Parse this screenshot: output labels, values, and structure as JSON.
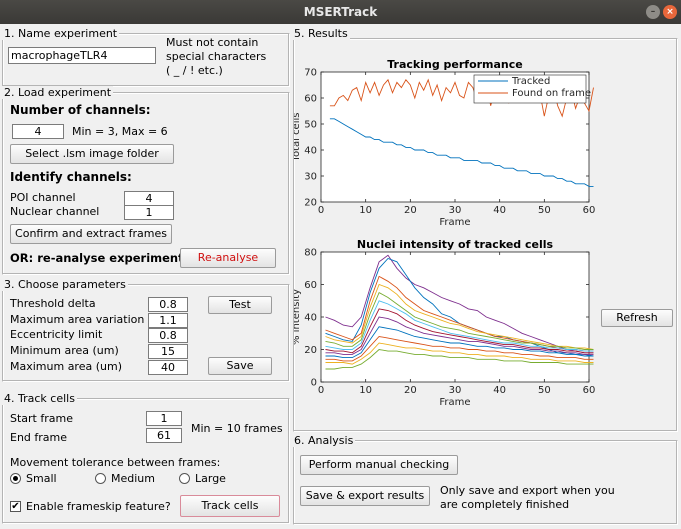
{
  "window": {
    "title": "MSERTrack",
    "min_glyph": "–",
    "close_glyph": "×"
  },
  "name_panel": {
    "title": "1. Name experiment",
    "value": "macrophageTLR4",
    "note_lines": [
      "Must not contain",
      "special characters",
      "( _ / ! etc.)"
    ]
  },
  "load_panel": {
    "title": "2. Load experiment",
    "channels_heading": "Number of channels:",
    "channels_value": "4",
    "channels_range": "Min = 3, Max = 6",
    "select_button": "Select .lsm image folder",
    "identify_heading": "Identify channels:",
    "poi_label": "POI channel",
    "poi_value": "4",
    "nuclear_label": "Nuclear channel",
    "nuclear_value": "1",
    "confirm_button": "Confirm and extract frames",
    "reanalyse_label": "OR: re-analyse experiment",
    "reanalyse_button": "Re-analyse"
  },
  "params_panel": {
    "title": "3. Choose parameters",
    "rows": [
      {
        "label": "Threshold delta",
        "value": "0.8"
      },
      {
        "label": "Maximum area variation",
        "value": "1.1"
      },
      {
        "label": "Eccentricity limit",
        "value": "0.8"
      },
      {
        "label": "Minimum area (um)",
        "value": "15"
      },
      {
        "label": "Maximum area (um)",
        "value": "40"
      }
    ],
    "test_button": "Test",
    "save_button": "Save"
  },
  "track_panel": {
    "title": "4. Track cells",
    "start_label": "Start frame",
    "start_value": "1",
    "end_label": "End frame",
    "end_value": "61",
    "min_note": "Min = 10 frames",
    "tolerance_label": "Movement tolerance between frames:",
    "options": [
      "Small",
      "Medium",
      "Large"
    ],
    "selected_option": "Small",
    "frameskip_label": "Enable frameskip feature?",
    "frameskip_checked": true,
    "check_glyph": "✔",
    "track_button": "Track cells"
  },
  "results_panel": {
    "title": "5. Results",
    "refresh_button": "Refresh"
  },
  "analysis_panel": {
    "title": "6. Analysis",
    "manual_button": "Perform manual checking",
    "export_button": "Save & export results",
    "export_note_lines": [
      "Only save and export when you",
      "are completely finished"
    ]
  },
  "chart_data": [
    {
      "type": "line",
      "title": "Tracking performance",
      "xlabel": "Frame",
      "ylabel": "Total cells",
      "xlim": [
        0,
        60
      ],
      "ylim": [
        20,
        70
      ],
      "xticks": [
        0,
        10,
        20,
        30,
        40,
        50,
        60
      ],
      "yticks": [
        20,
        30,
        40,
        50,
        60,
        70
      ],
      "legend_position": "top-right",
      "series": [
        {
          "name": "Tracked",
          "color": "#0072bd",
          "x": [
            2,
            3,
            4,
            5,
            6,
            7,
            8,
            9,
            10,
            11,
            12,
            13,
            14,
            15,
            16,
            17,
            18,
            19,
            20,
            21,
            22,
            23,
            24,
            25,
            26,
            27,
            28,
            29,
            30,
            31,
            32,
            33,
            34,
            35,
            36,
            37,
            38,
            39,
            40,
            41,
            42,
            43,
            44,
            45,
            46,
            47,
            48,
            49,
            50,
            51,
            52,
            53,
            54,
            55,
            56,
            57,
            58,
            59,
            60,
            61
          ],
          "values": [
            52,
            52,
            51,
            50,
            49,
            48,
            47,
            46,
            45,
            45,
            44,
            44,
            43,
            43,
            43,
            42,
            42,
            41,
            41,
            40,
            40,
            40,
            39,
            39,
            38,
            38,
            38,
            37,
            37,
            37,
            36,
            36,
            36,
            36,
            35,
            35,
            35,
            34,
            34,
            33,
            33,
            33,
            32,
            32,
            32,
            31,
            31,
            31,
            30,
            30,
            30,
            29,
            29,
            28,
            28,
            27,
            27,
            27,
            26,
            26
          ]
        },
        {
          "name": "Found on frame",
          "color": "#d95319",
          "x": [
            2,
            3,
            4,
            5,
            6,
            7,
            8,
            9,
            10,
            11,
            12,
            13,
            14,
            15,
            16,
            17,
            18,
            19,
            20,
            21,
            22,
            23,
            24,
            25,
            26,
            27,
            28,
            29,
            30,
            31,
            32,
            33,
            34,
            35,
            36,
            37,
            38,
            39,
            40,
            41,
            42,
            43,
            44,
            45,
            46,
            47,
            48,
            49,
            50,
            51,
            52,
            53,
            54,
            55,
            56,
            57,
            58,
            59,
            60,
            61
          ],
          "values": [
            57,
            57,
            60,
            61,
            59,
            63,
            64,
            59,
            66,
            62,
            66,
            61,
            65,
            67,
            62,
            66,
            64,
            67,
            65,
            60,
            66,
            63,
            67,
            61,
            65,
            59,
            64,
            62,
            66,
            61,
            60,
            66,
            64,
            59,
            63,
            66,
            57,
            64,
            60,
            66,
            58,
            64,
            62,
            67,
            60,
            65,
            59,
            62,
            53,
            61,
            64,
            57,
            53,
            60,
            63,
            56,
            61,
            58,
            55,
            64
          ]
        }
      ]
    },
    {
      "type": "line",
      "title": "Nuclei intensity of tracked cells",
      "xlabel": "Frame",
      "ylabel": "% intensity",
      "xlim": [
        0,
        60
      ],
      "ylim": [
        0,
        80
      ],
      "xticks": [
        0,
        10,
        20,
        30,
        40,
        50,
        60
      ],
      "yticks": [
        0,
        20,
        40,
        60,
        80
      ],
      "x": [
        1,
        3,
        5,
        7,
        9,
        11,
        13,
        15,
        17,
        19,
        21,
        23,
        25,
        27,
        29,
        31,
        33,
        35,
        37,
        39,
        41,
        43,
        45,
        47,
        49,
        51,
        53,
        55,
        57,
        59,
        61
      ],
      "series": [
        {
          "color": "#7e2f8e",
          "values": [
            40,
            38,
            35,
            34,
            40,
            58,
            74,
            78,
            70,
            64,
            60,
            58,
            55,
            52,
            50,
            48,
            45,
            44,
            40,
            38,
            36,
            33,
            30,
            28,
            26,
            24,
            22,
            20,
            19,
            18,
            18
          ]
        },
        {
          "color": "#0072bd",
          "values": [
            30,
            28,
            26,
            25,
            35,
            55,
            70,
            76,
            74,
            66,
            58,
            52,
            48,
            42,
            40,
            36,
            34,
            32,
            30,
            28,
            28,
            26,
            25,
            24,
            22,
            20,
            18,
            18,
            17,
            17,
            16
          ]
        },
        {
          "color": "#d95319",
          "values": [
            32,
            30,
            28,
            26,
            30,
            50,
            65,
            62,
            58,
            52,
            48,
            44,
            42,
            40,
            38,
            36,
            34,
            32,
            30,
            28,
            27,
            26,
            25,
            24,
            23,
            22,
            21,
            20,
            20,
            19,
            19
          ]
        },
        {
          "color": "#edb120",
          "values": [
            28,
            26,
            25,
            24,
            28,
            46,
            60,
            58,
            54,
            48,
            44,
            42,
            40,
            38,
            36,
            35,
            33,
            31,
            30,
            29,
            28,
            27,
            26,
            25,
            24,
            23,
            22,
            22,
            21,
            21,
            20
          ]
        },
        {
          "color": "#77ac30",
          "values": [
            25,
            24,
            22,
            22,
            26,
            42,
            55,
            52,
            48,
            44,
            40,
            38,
            36,
            34,
            33,
            32,
            30,
            29,
            28,
            27,
            26,
            25,
            24,
            24,
            23,
            22,
            22,
            21,
            21,
            20,
            20
          ]
        },
        {
          "color": "#4dbeee",
          "values": [
            22,
            21,
            20,
            20,
            24,
            38,
            50,
            48,
            45,
            42,
            38,
            36,
            34,
            32,
            30,
            29,
            28,
            27,
            26,
            25,
            24,
            24,
            23,
            22,
            22,
            21,
            21,
            20,
            20,
            19,
            19
          ]
        },
        {
          "color": "#a2142f",
          "values": [
            20,
            19,
            19,
            18,
            22,
            34,
            45,
            44,
            42,
            38,
            35,
            33,
            31,
            30,
            29,
            28,
            27,
            26,
            25,
            24,
            23,
            23,
            22,
            21,
            21,
            20,
            20,
            19,
            19,
            18,
            18
          ]
        },
        {
          "color": "#7e2f8e",
          "values": [
            18,
            18,
            17,
            17,
            20,
            30,
            40,
            39,
            37,
            34,
            32,
            30,
            29,
            28,
            27,
            26,
            25,
            25,
            24,
            23,
            22,
            22,
            21,
            20,
            20,
            19,
            19,
            18,
            18,
            17,
            17
          ]
        },
        {
          "color": "#0072bd",
          "values": [
            16,
            16,
            15,
            15,
            18,
            26,
            34,
            33,
            32,
            30,
            28,
            27,
            26,
            25,
            24,
            24,
            23,
            22,
            22,
            21,
            21,
            20,
            20,
            19,
            19,
            18,
            18,
            17,
            17,
            16,
            16
          ]
        },
        {
          "color": "#d95319",
          "values": [
            14,
            14,
            13,
            13,
            16,
            22,
            28,
            27,
            26,
            25,
            24,
            23,
            22,
            22,
            21,
            21,
            20,
            20,
            19,
            19,
            18,
            18,
            17,
            17,
            16,
            16,
            15,
            15,
            15,
            14,
            14
          ]
        },
        {
          "color": "#edb120",
          "values": [
            12,
            12,
            12,
            11,
            14,
            18,
            24,
            23,
            22,
            21,
            21,
            20,
            19,
            19,
            18,
            18,
            17,
            17,
            16,
            16,
            16,
            15,
            15,
            14,
            14,
            14,
            13,
            13,
            13,
            12,
            12
          ]
        },
        {
          "color": "#77ac30",
          "values": [
            8,
            8,
            9,
            9,
            11,
            15,
            20,
            19,
            19,
            18,
            17,
            17,
            16,
            16,
            15,
            15,
            15,
            14,
            14,
            14,
            13,
            13,
            13,
            12,
            12,
            12,
            12,
            11,
            11,
            11,
            11
          ]
        }
      ]
    }
  ]
}
